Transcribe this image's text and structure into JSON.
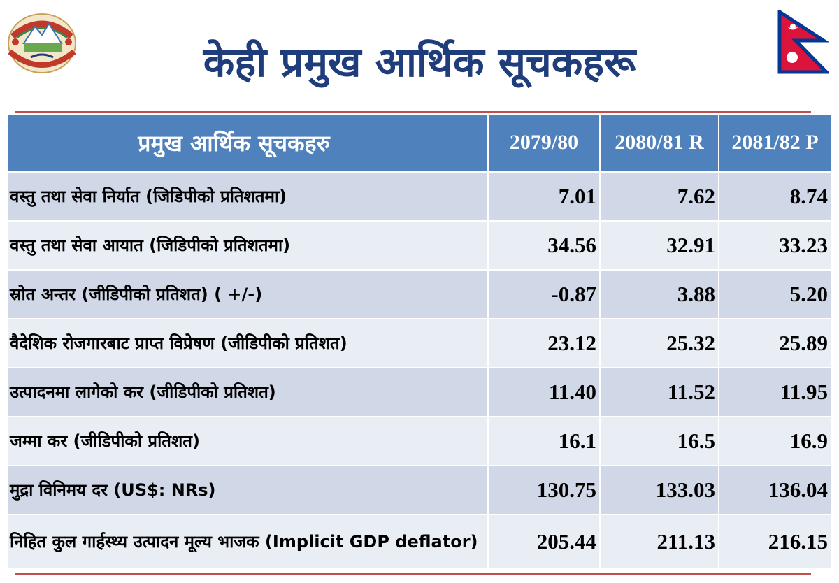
{
  "header": {
    "title": "केही प्रमुख आर्थिक सूचकहरू",
    "emblem_icon": "nepal-government-emblem-icon",
    "flag_icon": "nepal-flag-icon"
  },
  "table": {
    "columns": [
      "प्रमुख आर्थिक सूचकहरु",
      "2079/80",
      "2080/81 R",
      "2081/82 P"
    ],
    "rows": [
      {
        "label": "वस्तु तथा सेवा निर्यात (जिडिपीको प्रतिशतमा)",
        "values": [
          "7.01",
          "7.62",
          "8.74"
        ]
      },
      {
        "label": "वस्तु तथा सेवा आयात (जिडिपीको प्रतिशतमा)",
        "values": [
          "34.56",
          "32.91",
          "33.23"
        ]
      },
      {
        "label": "स्रोत अन्तर (जीडिपीको प्रतिशत) ( +/-)",
        "values": [
          "-0.87",
          "3.88",
          "5.20"
        ]
      },
      {
        "label": "वैदेशिक रोजगारबाट प्राप्त विप्रेषण (जीडिपीको प्रतिशत)",
        "values": [
          "23.12",
          "25.32",
          "25.89"
        ]
      },
      {
        "label": "उत्पादनमा लागेको कर (जीडिपीको प्रतिशत)",
        "values": [
          "11.40",
          "11.52",
          "11.95"
        ]
      },
      {
        "label": "जम्मा कर  (जीडिपीको प्रतिशत)",
        "values": [
          "16.1",
          "16.5",
          "16.9"
        ]
      },
      {
        "label": "मुद्रा विनिमय दर (US$: NRs)",
        "values": [
          "130.75",
          "133.03",
          "136.04"
        ]
      },
      {
        "label": "निहित कुल गार्हस्थ्य उत्पादन मूल्य भाजक (Implicit GDP deflator)",
        "values": [
          "205.44",
          "211.13",
          "216.15"
        ]
      }
    ]
  },
  "colors": {
    "title": "#1f3d7a",
    "header_fill": "#4f81bd",
    "row_dark": "#d0d8e8",
    "row_light": "#e9edf4",
    "rule": "#c0504d"
  }
}
